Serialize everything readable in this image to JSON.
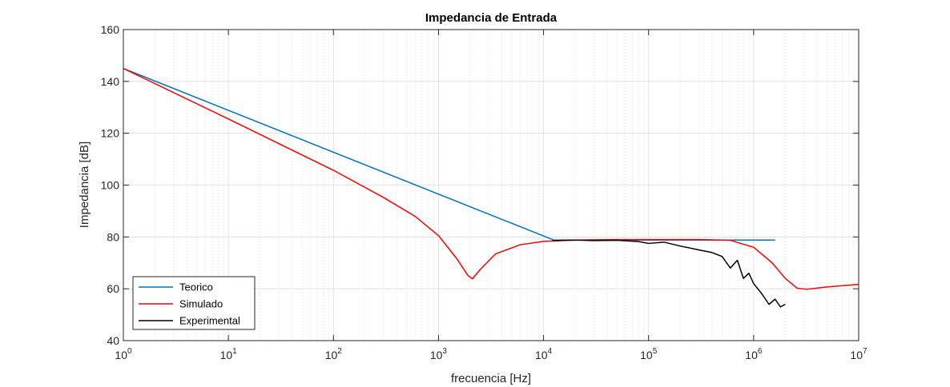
{
  "chart_data": {
    "type": "line",
    "title": "Impedancia de Entrada",
    "xlabel": "frecuencia [Hz]",
    "ylabel": "Impedancia [dB]",
    "xscale": "log",
    "xlim": [
      1,
      10000000
    ],
    "ylim": [
      40,
      160
    ],
    "x_ticks": [
      {
        "value": 1,
        "base": "10",
        "exp": "0"
      },
      {
        "value": 10,
        "base": "10",
        "exp": "1"
      },
      {
        "value": 100,
        "base": "10",
        "exp": "2"
      },
      {
        "value": 1000,
        "base": "10",
        "exp": "3"
      },
      {
        "value": 10000,
        "base": "10",
        "exp": "4"
      },
      {
        "value": 100000,
        "base": "10",
        "exp": "5"
      },
      {
        "value": 1000000,
        "base": "10",
        "exp": "6"
      },
      {
        "value": 10000000,
        "base": "10",
        "exp": "7"
      }
    ],
    "y_ticks": [
      {
        "value": 40,
        "label": "40"
      },
      {
        "value": 60,
        "label": "60"
      },
      {
        "value": 80,
        "label": "80"
      },
      {
        "value": 100,
        "label": "100"
      },
      {
        "value": 120,
        "label": "120"
      },
      {
        "value": 140,
        "label": "140"
      },
      {
        "value": 160,
        "label": "160"
      }
    ],
    "grid": true,
    "minor_grid": true,
    "legend_position": "bottom-left",
    "series": [
      {
        "name": "Teorico",
        "color": "#0072BD",
        "x": [
          1,
          12500,
          1600000
        ],
        "y": [
          145,
          78.8,
          78.8
        ]
      },
      {
        "name": "Simulado",
        "color": "#FF0000",
        "x": [
          1,
          10,
          100,
          300,
          600,
          1000,
          1500,
          1900,
          2100,
          2500,
          3500,
          6000,
          10000,
          20000,
          50000,
          100000,
          300000,
          600000,
          1000000,
          1500000,
          2000000,
          2600000,
          3200000,
          5000000,
          10000000
        ],
        "y": [
          145,
          125.5,
          105.7,
          95.2,
          87.9,
          80.5,
          71.5,
          65.2,
          63.8,
          67.5,
          73.5,
          77.0,
          78.3,
          78.8,
          79.0,
          79.0,
          79.0,
          78.7,
          76.0,
          70.0,
          64.0,
          60.2,
          59.8,
          60.7,
          61.7
        ]
      },
      {
        "name": "Experimental",
        "color": "#000000",
        "x": [
          12000,
          15000,
          20000,
          30000,
          50000,
          80000,
          100000,
          140000,
          200000,
          300000,
          400000,
          500000,
          600000,
          700000,
          800000,
          900000,
          1000000,
          1200000,
          1400000,
          1600000,
          1800000,
          2000000
        ],
        "y": [
          78.5,
          78.7,
          78.8,
          78.6,
          78.7,
          78.2,
          77.5,
          78.0,
          76.5,
          75.0,
          74.0,
          72.5,
          68.0,
          71.0,
          64.0,
          66.0,
          62.0,
          58.0,
          54.0,
          56.0,
          53.0,
          54.0
        ]
      }
    ]
  }
}
